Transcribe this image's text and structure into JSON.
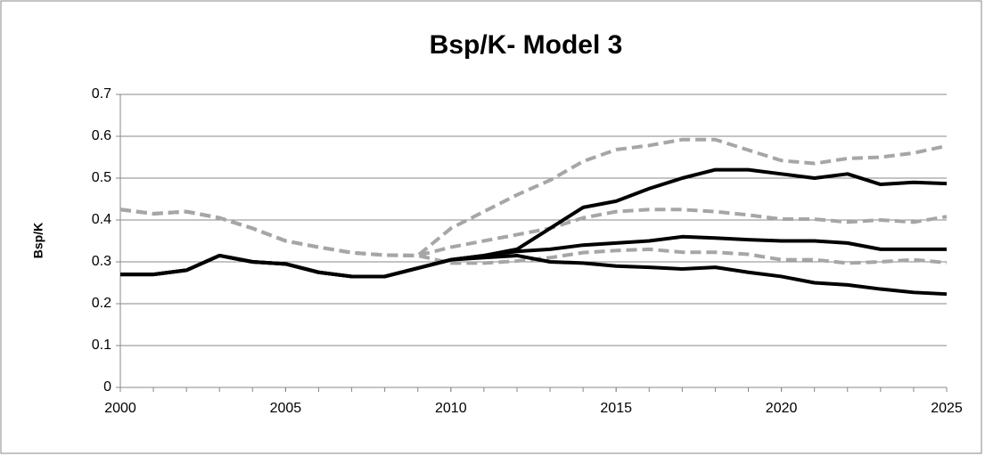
{
  "chart_data": {
    "type": "line",
    "title": "Bsp/K- Model 3",
    "y_label": "Bsp/K",
    "x": [
      2000,
      2001,
      2002,
      2003,
      2004,
      2005,
      2006,
      2007,
      2008,
      2009,
      2010,
      2011,
      2012,
      2013,
      2014,
      2015,
      2016,
      2017,
      2018,
      2019,
      2020,
      2021,
      2022,
      2023,
      2024,
      2025
    ],
    "xlim": [
      2000,
      2025
    ],
    "xticks": [
      2000,
      2005,
      2010,
      2015,
      2020,
      2025
    ],
    "ylim": [
      0,
      0.7
    ],
    "yticks": [
      0,
      0.1,
      0.2,
      0.3,
      0.4,
      0.5,
      0.6,
      0.7
    ],
    "grid": true,
    "series": [
      {
        "color": "#a6a6a6",
        "dashed": true,
        "values": [
          0.425,
          0.415,
          0.42,
          0.405,
          0.38,
          0.35,
          0.335,
          0.322,
          0.316,
          0.315,
          0.38,
          0.42,
          0.46,
          0.495,
          0.54,
          0.568,
          0.578,
          0.592,
          0.592,
          0.567,
          0.542,
          0.535,
          0.547,
          0.55,
          0.56,
          0.577
        ]
      },
      {
        "color": "#a6a6a6",
        "dashed": true,
        "values": [
          0.425,
          0.415,
          0.42,
          0.405,
          0.38,
          0.35,
          0.335,
          0.322,
          0.316,
          0.315,
          0.335,
          0.35,
          0.365,
          0.38,
          0.405,
          0.42,
          0.425,
          0.425,
          0.42,
          0.412,
          0.402,
          0.402,
          0.395,
          0.4,
          0.395,
          0.408
        ]
      },
      {
        "color": "#a6a6a6",
        "dashed": true,
        "values": [
          0.425,
          0.415,
          0.42,
          0.405,
          0.38,
          0.35,
          0.335,
          0.322,
          0.316,
          0.315,
          0.297,
          0.297,
          0.302,
          0.31,
          0.322,
          0.327,
          0.33,
          0.323,
          0.323,
          0.318,
          0.305,
          0.305,
          0.297,
          0.3,
          0.305,
          0.298
        ]
      },
      {
        "color": "#000000",
        "dashed": false,
        "values": [
          0.27,
          0.27,
          0.28,
          0.315,
          0.3,
          0.295,
          0.275,
          0.265,
          0.265,
          0.285,
          0.305,
          0.315,
          0.33,
          0.38,
          0.43,
          0.445,
          0.475,
          0.5,
          0.52,
          0.52,
          0.51,
          0.5,
          0.51,
          0.485,
          0.49,
          0.487
        ]
      },
      {
        "color": "#000000",
        "dashed": false,
        "values": [
          0.27,
          0.27,
          0.28,
          0.315,
          0.3,
          0.295,
          0.275,
          0.265,
          0.265,
          0.285,
          0.305,
          0.315,
          0.325,
          0.33,
          0.34,
          0.345,
          0.35,
          0.36,
          0.357,
          0.353,
          0.35,
          0.35,
          0.345,
          0.33,
          0.33,
          0.33
        ]
      },
      {
        "color": "#000000",
        "dashed": false,
        "values": [
          0.27,
          0.27,
          0.28,
          0.315,
          0.3,
          0.295,
          0.275,
          0.265,
          0.265,
          0.285,
          0.305,
          0.31,
          0.315,
          0.3,
          0.297,
          0.29,
          0.287,
          0.283,
          0.287,
          0.275,
          0.265,
          0.25,
          0.245,
          0.235,
          0.227,
          0.223
        ]
      }
    ]
  }
}
